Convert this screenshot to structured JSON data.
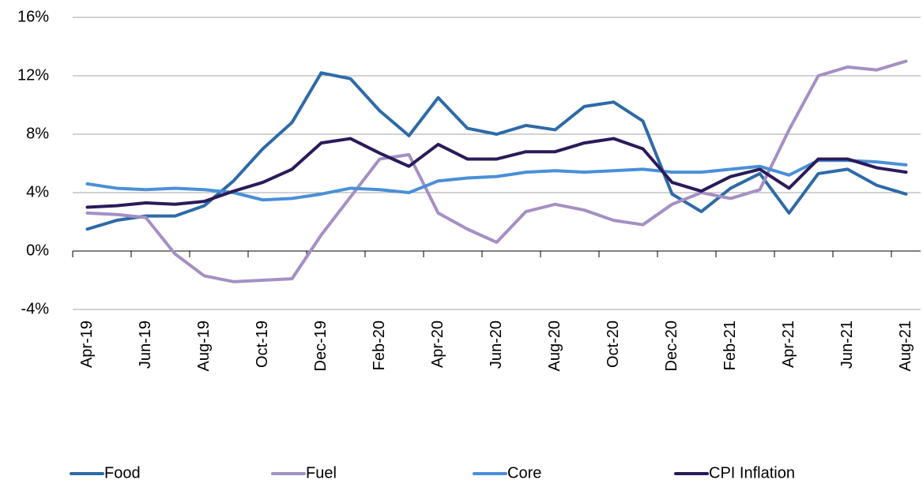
{
  "chart_data": {
    "type": "line",
    "categories": [
      "Apr-19",
      null,
      "Jun-19",
      null,
      "Aug-19",
      null,
      "Oct-19",
      null,
      "Dec-19",
      null,
      "Feb-20",
      null,
      "Apr-20",
      null,
      "Jun-20",
      null,
      "Aug-20",
      null,
      "Oct-20",
      null,
      "Dec-20",
      null,
      "Feb-21",
      null,
      "Apr-21",
      null,
      "Jun-21",
      null,
      "Aug-21"
    ],
    "series": [
      {
        "name": "Food",
        "color": "#2e6aa7",
        "values": [
          1.5,
          2.1,
          2.4,
          2.4,
          3.1,
          4.8,
          7.0,
          8.8,
          12.2,
          11.8,
          9.6,
          7.9,
          10.5,
          8.4,
          8.0,
          8.6,
          8.3,
          9.9,
          10.2,
          8.9,
          3.9,
          2.7,
          4.3,
          5.3,
          2.6,
          5.3,
          5.6,
          4.5,
          3.9
        ]
      },
      {
        "name": "Fuel",
        "color": "#a58fc4",
        "values": [
          2.6,
          2.5,
          2.3,
          -0.2,
          -1.7,
          -2.1,
          -2.0,
          -1.9,
          1.1,
          3.7,
          6.3,
          6.6,
          2.6,
          1.5,
          0.6,
          2.7,
          3.2,
          2.8,
          2.1,
          1.8,
          3.2,
          4.0,
          3.6,
          4.2,
          8.3,
          12.0,
          12.6,
          12.4,
          13.0
        ]
      },
      {
        "name": "Core",
        "color": "#4a8fd8",
        "values": [
          4.6,
          4.3,
          4.2,
          4.3,
          4.2,
          4.0,
          3.5,
          3.6,
          3.9,
          4.3,
          4.2,
          4.0,
          4.8,
          5.0,
          5.1,
          5.4,
          5.5,
          5.4,
          5.5,
          5.6,
          5.4,
          5.4,
          5.6,
          5.8,
          5.2,
          6.2,
          6.2,
          6.1,
          5.9
        ]
      },
      {
        "name": "CPI Inflation",
        "color": "#2b1a5a",
        "values": [
          3.0,
          3.1,
          3.3,
          3.2,
          3.4,
          4.1,
          4.7,
          5.6,
          7.4,
          7.7,
          6.7,
          5.8,
          7.3,
          6.3,
          6.3,
          6.8,
          6.8,
          7.4,
          7.7,
          7.0,
          4.7,
          4.1,
          5.1,
          5.6,
          4.3,
          6.3,
          6.3,
          5.7,
          5.4
        ]
      }
    ],
    "ylim": [
      -4,
      16
    ],
    "yticks": [
      {
        "value": -4,
        "label": "-4%"
      },
      {
        "value": 0,
        "label": "0%"
      },
      {
        "value": 4,
        "label": "4%"
      },
      {
        "value": 8,
        "label": "8%"
      },
      {
        "value": 12,
        "label": "12%"
      },
      {
        "value": 16,
        "label": "16%"
      }
    ],
    "grid": true,
    "legend": "bottom"
  }
}
